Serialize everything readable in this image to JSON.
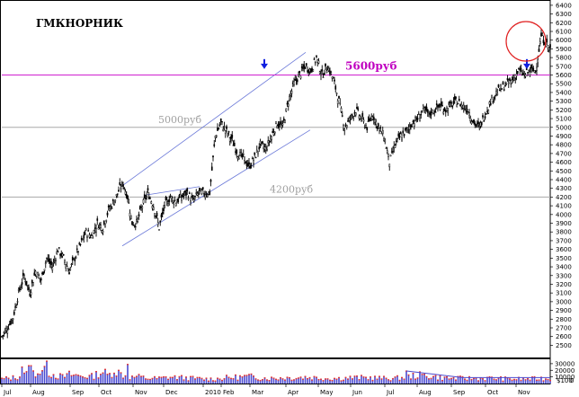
{
  "chart_data": {
    "type": "candlestick",
    "title": "ГМКНОРНИК",
    "price_axis": {
      "ticks": [
        2500,
        2600,
        2700,
        2800,
        2900,
        3000,
        3100,
        3200,
        3300,
        3400,
        3500,
        3600,
        3700,
        3800,
        3900,
        4000,
        4100,
        4200,
        4300,
        4400,
        4500,
        4600,
        4700,
        4800,
        4900,
        5000,
        5100,
        5200,
        5300,
        5400,
        5500,
        5600,
        5700,
        5800,
        5900,
        6000,
        6100,
        6200,
        6300,
        6400
      ],
      "ylim": [
        2360,
        6440
      ]
    },
    "volume_axis": {
      "ticks": [
        10000,
        20000,
        30000
      ],
      "ylim": [
        0,
        38000
      ],
      "unit_label": "$100",
      "zero_label": "0"
    },
    "x_labels": [
      "Jul",
      "Aug",
      "Sep",
      "Oct",
      "Nov",
      "Dec",
      "2010",
      "Feb",
      "Mar",
      "Apr",
      "May",
      "Jun",
      "Jul",
      "Aug",
      "Sep",
      "Oct",
      "Nov"
    ],
    "price_path": [
      [
        0,
        2600
      ],
      [
        5,
        2700
      ],
      [
        10,
        2820
      ],
      [
        15,
        3100
      ],
      [
        20,
        3300
      ],
      [
        25,
        3100
      ],
      [
        30,
        3350
      ],
      [
        35,
        3250
      ],
      [
        40,
        3500
      ],
      [
        45,
        3400
      ],
      [
        50,
        3600
      ],
      [
        55,
        3500
      ],
      [
        60,
        3350
      ],
      [
        65,
        3500
      ],
      [
        70,
        3650
      ],
      [
        75,
        3800
      ],
      [
        80,
        3750
      ],
      [
        85,
        3900
      ],
      [
        90,
        3850
      ],
      [
        95,
        4050
      ],
      [
        100,
        4150
      ],
      [
        105,
        4300
      ],
      [
        108,
        4350
      ],
      [
        112,
        4200
      ],
      [
        116,
        3900
      ],
      [
        120,
        3900
      ],
      [
        125,
        4100
      ],
      [
        130,
        4250
      ],
      [
        135,
        4100
      ],
      [
        140,
        3850
      ],
      [
        145,
        4100
      ],
      [
        150,
        4200
      ],
      [
        155,
        4150
      ],
      [
        160,
        4200
      ],
      [
        165,
        4250
      ],
      [
        170,
        4150
      ],
      [
        175,
        4250
      ],
      [
        180,
        4250
      ],
      [
        185,
        4250
      ],
      [
        190,
        4900
      ],
      [
        195,
        5050
      ],
      [
        200,
        4950
      ],
      [
        205,
        4850
      ],
      [
        210,
        4700
      ],
      [
        215,
        4650
      ],
      [
        220,
        4550
      ],
      [
        225,
        4650
      ],
      [
        230,
        4800
      ],
      [
        235,
        4750
      ],
      [
        240,
        4900
      ],
      [
        245,
        5050
      ],
      [
        250,
        5000
      ],
      [
        255,
        5300
      ],
      [
        260,
        5500
      ],
      [
        265,
        5600
      ],
      [
        270,
        5700
      ],
      [
        275,
        5650
      ],
      [
        280,
        5800
      ],
      [
        285,
        5600
      ],
      [
        290,
        5700
      ],
      [
        295,
        5550
      ],
      [
        300,
        5300
      ],
      [
        305,
        5000
      ],
      [
        310,
        5100
      ],
      [
        315,
        5200
      ],
      [
        320,
        5100
      ],
      [
        325,
        5000
      ],
      [
        330,
        5150
      ],
      [
        335,
        5000
      ],
      [
        340,
        4900
      ],
      [
        345,
        4600
      ],
      [
        350,
        4800
      ],
      [
        355,
        4900
      ],
      [
        360,
        4950
      ],
      [
        365,
        5050
      ],
      [
        370,
        5100
      ],
      [
        375,
        5200
      ],
      [
        380,
        5150
      ],
      [
        385,
        5200
      ],
      [
        390,
        5250
      ],
      [
        395,
        5200
      ],
      [
        400,
        5250
      ],
      [
        405,
        5300
      ],
      [
        410,
        5250
      ],
      [
        415,
        5200
      ],
      [
        420,
        5050
      ],
      [
        425,
        5000
      ],
      [
        430,
        5150
      ],
      [
        435,
        5300
      ],
      [
        440,
        5400
      ],
      [
        445,
        5450
      ],
      [
        450,
        5500
      ],
      [
        455,
        5550
      ],
      [
        460,
        5650
      ],
      [
        465,
        5600
      ],
      [
        470,
        5650
      ],
      [
        475,
        5650
      ],
      [
        480,
        6050
      ],
      [
        485,
        5950
      ],
      [
        488,
        5900
      ]
    ],
    "volume_path": [
      [
        0,
        7000
      ],
      [
        10,
        9000
      ],
      [
        20,
        13000
      ],
      [
        30,
        18000
      ],
      [
        40,
        19000
      ],
      [
        45,
        15000
      ],
      [
        50,
        12000
      ],
      [
        55,
        10000
      ],
      [
        60,
        14000
      ],
      [
        70,
        12000
      ],
      [
        80,
        11000
      ],
      [
        90,
        19000
      ],
      [
        95,
        12000
      ],
      [
        100,
        22000
      ],
      [
        105,
        16000
      ],
      [
        110,
        12000
      ],
      [
        115,
        9000
      ],
      [
        120,
        11000
      ],
      [
        130,
        8000
      ],
      [
        140,
        8000
      ],
      [
        150,
        10000
      ],
      [
        160,
        9000
      ],
      [
        170,
        8000
      ],
      [
        180,
        7000
      ],
      [
        190,
        7000
      ],
      [
        200,
        9000
      ],
      [
        210,
        10000
      ],
      [
        220,
        11000
      ],
      [
        230,
        9000
      ],
      [
        240,
        8000
      ],
      [
        250,
        9000
      ],
      [
        260,
        9000
      ],
      [
        270,
        10000
      ],
      [
        280,
        9000
      ],
      [
        290,
        8000
      ],
      [
        300,
        8000
      ],
      [
        310,
        9000
      ],
      [
        320,
        9000
      ],
      [
        330,
        9000
      ],
      [
        340,
        8000
      ],
      [
        350,
        8000
      ],
      [
        360,
        10000
      ],
      [
        370,
        13000
      ],
      [
        380,
        12000
      ],
      [
        390,
        9000
      ],
      [
        400,
        8000
      ],
      [
        410,
        8000
      ],
      [
        420,
        8000
      ],
      [
        430,
        8000
      ],
      [
        440,
        8000
      ],
      [
        450,
        7000
      ],
      [
        460,
        7000
      ],
      [
        470,
        7000
      ],
      [
        480,
        8000
      ],
      [
        488,
        7000
      ]
    ],
    "volume_spikes": [
      [
        18,
        25000
      ],
      [
        25,
        27000
      ],
      [
        40,
        34000
      ],
      [
        112,
        29000
      ],
      [
        360,
        19000
      ]
    ],
    "annotations": [
      {
        "text": "5600руб",
        "price": 5600
      },
      {
        "text": "5000руб",
        "price": 5000
      },
      {
        "text": "4200руб",
        "price": 4200
      }
    ],
    "arrows": [
      {
        "price": 5700
      },
      {
        "price": 5700
      }
    ]
  }
}
